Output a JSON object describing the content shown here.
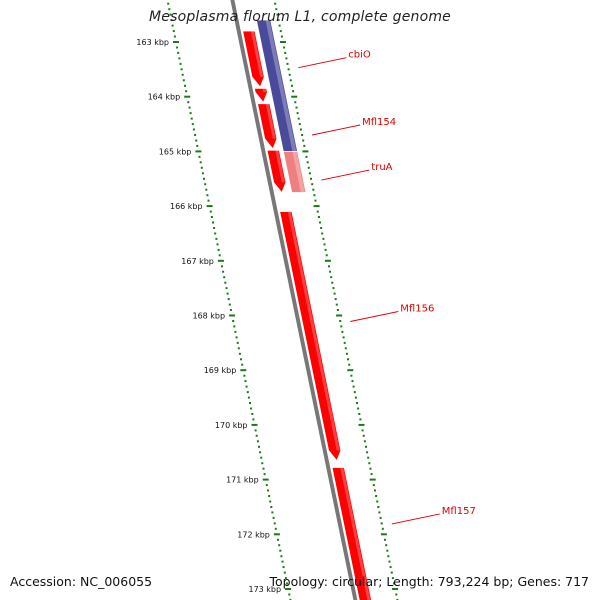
{
  "title": "Mesoplasma florum L1, complete genome",
  "footer": {
    "accession": "Accession: NC_006055",
    "summary": "Topology: circular; Length: 793,224 bp; Genes: 717"
  },
  "scale_labels": [
    "163 kbp",
    "164 kbp",
    "165 kbp",
    "166 kbp",
    "167 kbp",
    "168 kbp",
    "169 kbp",
    "170 kbp",
    "171 kbp",
    "172 kbp",
    "173 kbp"
  ],
  "colors": {
    "backbone": "#777777",
    "forward_gene": "#ff0000",
    "reverse_region": "#4a4a9a",
    "rna_gene": "#f08080",
    "tick_marks": "#1a7a1a",
    "gene_label": "#dd0000"
  },
  "genes": [
    {
      "name": "cbiO",
      "strand": "forward",
      "start_kbp": 162.8,
      "end_kbp": 163.82
    },
    {
      "name": "",
      "strand": "forward",
      "start_kbp": 163.85,
      "end_kbp": 164.1
    },
    {
      "name": "Mfl154",
      "strand": "forward",
      "start_kbp": 164.13,
      "end_kbp": 164.95
    },
    {
      "name": "truA",
      "strand": "forward",
      "start_kbp": 164.98,
      "end_kbp": 165.75
    },
    {
      "name": "Mfl156",
      "strand": "forward",
      "start_kbp": 166.1,
      "end_kbp": 170.65
    },
    {
      "name": "Mfl157",
      "strand": "forward",
      "start_kbp": 170.78,
      "end_kbp": 173.5
    }
  ],
  "reverse_regions": [
    {
      "strand": "reverse",
      "start_kbp": 162.6,
      "end_kbp": 165.0,
      "type": "gene"
    },
    {
      "strand": "reverse",
      "start_kbp": 165.0,
      "end_kbp": 165.75,
      "type": "rna"
    }
  ]
}
